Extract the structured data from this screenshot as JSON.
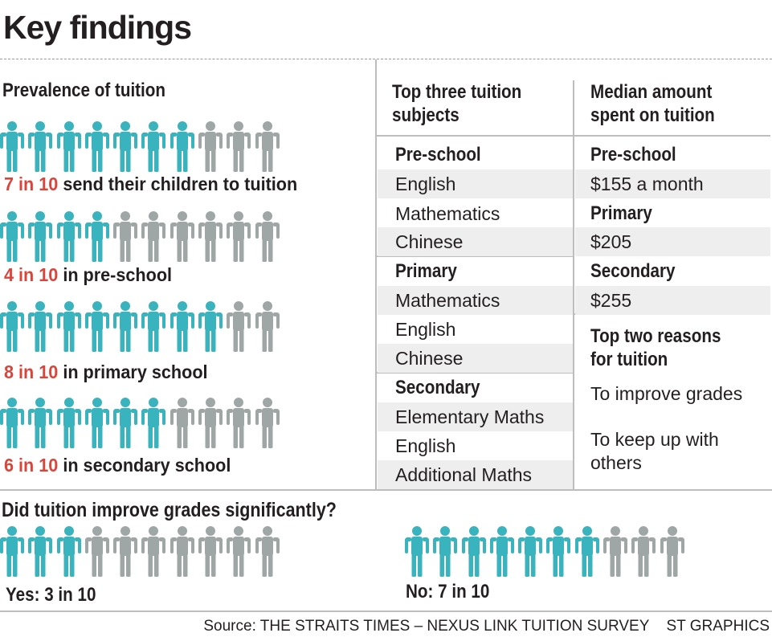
{
  "title": "Key findings",
  "prevalence": {
    "heading": "Prevalence of tuition",
    "rows": [
      {
        "highlight": "7 in 10",
        "text": " send their children to tuition",
        "filled": 7,
        "total": 10
      },
      {
        "highlight": "4 in 10",
        "text": " in pre-school",
        "filled": 4,
        "total": 10
      },
      {
        "highlight": "8 in 10",
        "text": " in primary school",
        "filled": 8,
        "total": 10
      },
      {
        "highlight": "6 in 10",
        "text": " in secondary school",
        "filled": 6,
        "total": 10
      }
    ]
  },
  "subjects": {
    "heading": [
      "Top three tuition",
      "subjects"
    ],
    "groups": [
      {
        "level": "Pre-school",
        "items": [
          "English",
          "Mathematics",
          "Chinese"
        ]
      },
      {
        "level": "Primary",
        "items": [
          "Mathematics",
          "English",
          "Chinese"
        ]
      },
      {
        "level": "Secondary",
        "items": [
          "Elementary Maths",
          "English",
          "Additional Maths"
        ]
      }
    ]
  },
  "spending": {
    "heading": [
      "Median amount",
      "spent on tuition"
    ],
    "rows": [
      {
        "level": "Pre-school",
        "amount": "$155 a month"
      },
      {
        "level": "Primary",
        "amount": "$205"
      },
      {
        "level": "Secondary",
        "amount": "$255"
      }
    ]
  },
  "reasons": {
    "heading": [
      "Top two reasons",
      "for tuition"
    ],
    "items": [
      "To improve grades",
      "To keep up with others"
    ]
  },
  "improvement": {
    "question": "Did tuition improve grades significantly?",
    "yes": {
      "label": "Yes: 3 in 10",
      "filled": 3,
      "total": 10
    },
    "no": {
      "label": "No: 7 in 10",
      "filled": 7,
      "total": 10
    }
  },
  "source": {
    "text": "Source: THE STRAITS TIMES – NEXUS LINK TUITION SURVEY",
    "credit": "ST GRAPHICS"
  },
  "colors": {
    "filled_figure": "#39b4bf",
    "empty_figure": "#9fa7a6",
    "highlight_text": "#d9453b",
    "row_shade": "#eeeeee"
  },
  "icons": {
    "person": "person-icon"
  }
}
